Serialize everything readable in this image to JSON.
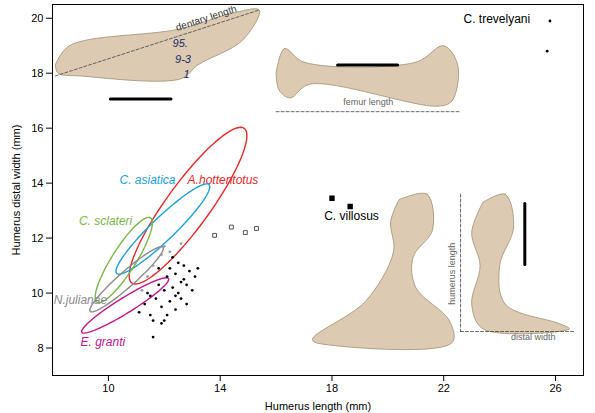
{
  "chart_data": {
    "type": "scatter",
    "x_label": "Humerus length (mm)",
    "y_label": "Humerus distal width (mm)",
    "xlim": [
      8,
      27
    ],
    "ylim": [
      7,
      20.5
    ],
    "xticks": [
      10,
      14,
      18,
      22,
      26
    ],
    "yticks": [
      8,
      10,
      12,
      14,
      16,
      18,
      20
    ],
    "ellipses": [
      {
        "name": "A.hottentotus",
        "color": "#e8282b",
        "center": [
          12.85,
          13.18
        ],
        "u": [
          2.0,
          2.82
        ],
        "v": [
          0.66,
          -0.42
        ],
        "label_x": 14.1,
        "label_y": 14.1
      },
      {
        "name": "C. asiatica",
        "color": "#1aa0dc",
        "center": [
          11.95,
          12.33
        ],
        "u": [
          1.65,
          1.62
        ],
        "v": [
          0.31,
          -0.28
        ],
        "label_x": 11.4,
        "label_y": 14.1
      },
      {
        "name": "C. sclateri",
        "color": "#7ab648",
        "center": [
          10.55,
          11.2
        ],
        "u": [
          0.95,
          1.54
        ],
        "v": [
          0.38,
          -0.2
        ],
        "label_x": 9.9,
        "label_y": 12.6
      },
      {
        "name": "N.julianae",
        "color": "#8a8a8a",
        "center": [
          10.65,
          10.5
        ],
        "u": [
          1.3,
          1.17
        ],
        "v": [
          0.2,
          -0.2
        ],
        "label_x": 9.0,
        "label_y": 9.75
      },
      {
        "name": "E. granti",
        "color": "#c4158a",
        "center": [
          10.6,
          9.55
        ],
        "u": [
          1.55,
          0.98
        ],
        "v": [
          0.16,
          -0.23
        ],
        "label_x": 9.8,
        "label_y": 8.2
      }
    ],
    "series": [
      {
        "color": "#000000",
        "marker": "dot",
        "x": [
          11.1,
          11.3,
          11.4,
          11.5,
          11.6,
          11.7,
          11.8,
          11.9,
          12.0,
          12.0,
          12.1,
          12.2,
          12.2,
          12.3,
          12.4,
          12.4,
          12.5,
          12.6,
          12.6,
          12.7,
          12.8,
          12.8,
          12.9,
          13.0,
          13.1,
          13.2,
          11.6,
          11.9,
          12.1,
          12.3,
          12.5,
          12.7,
          11.8,
          12.4,
          11.5
        ],
        "y": [
          9.3,
          9.6,
          10.0,
          9.2,
          8.4,
          9.8,
          10.3,
          9.5,
          10.1,
          9.0,
          10.6,
          9.7,
          10.9,
          10.2,
          9.4,
          10.7,
          10.0,
          10.4,
          9.8,
          11.0,
          10.3,
          9.6,
          10.8,
          10.1,
          10.6,
          10.9,
          9.0,
          8.9,
          9.2,
          11.3,
          11.1,
          10.5,
          10.9,
          9.9,
          9.9
        ]
      },
      {
        "color": "#999999",
        "marker": "dot",
        "x": [
          11.2,
          11.4,
          11.6,
          11.9,
          12.0,
          12.2,
          12.6
        ],
        "y": [
          10.1,
          10.6,
          11.0,
          11.4,
          11.7,
          11.5,
          11.8
        ]
      },
      {
        "color": "#555555",
        "marker": "square_open",
        "x": [
          13.8,
          14.4,
          14.9,
          15.3
        ],
        "y": [
          12.1,
          12.4,
          12.2,
          12.35
        ]
      },
      {
        "color": "#000000",
        "marker": "square",
        "x": [
          18.0,
          18.65
        ],
        "y": [
          13.45,
          13.15
        ]
      },
      {
        "color": "#000000",
        "marker": "dot",
        "x": [
          25.8,
          25.7
        ],
        "y": [
          19.9,
          18.8
        ]
      }
    ],
    "annotations": [
      {
        "text": "dentary length",
        "x": 13.5,
        "y": 20.0,
        "color": "#333333"
      },
      {
        "text": "femur length",
        "x": 19.3,
        "y": 16.95,
        "color": "#666666"
      },
      {
        "text": "humerus length",
        "x": 22.3,
        "y": 10.7,
        "color": "#666666"
      },
      {
        "text": "distal width",
        "x": 25.2,
        "y": 8.4,
        "color": "#666666"
      },
      {
        "text": "95.",
        "x": 12.57,
        "y": 19.08,
        "color": "#1a2a6a"
      },
      {
        "text": "9-3",
        "x": 12.67,
        "y": 18.5,
        "color": "#1a2a6a"
      },
      {
        "text": "1",
        "x": 12.8,
        "y": 17.95,
        "color": "#1a2a6a"
      },
      {
        "text": "C. villosus",
        "x": 18.7,
        "y": 12.8,
        "color": "#000000"
      },
      {
        "text": "C. trevelyani",
        "x": 23.9,
        "y": 19.95,
        "color": "#000000"
      }
    ]
  }
}
